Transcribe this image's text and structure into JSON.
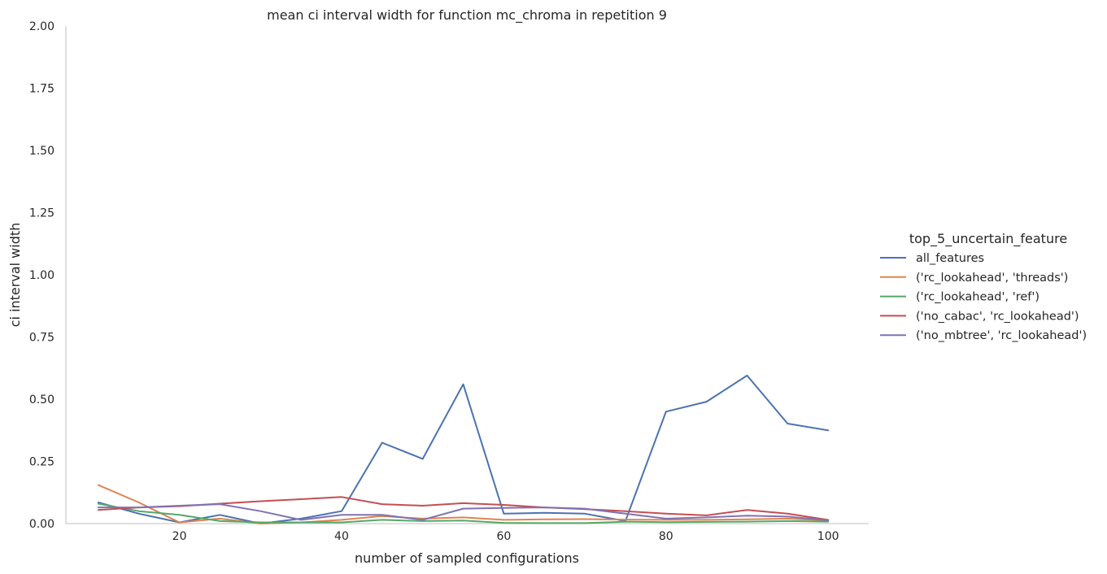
{
  "chart_data": {
    "type": "line",
    "title": "mean ci interval width for function mc_chroma in repetition 9",
    "xlabel": "number of sampled configurations",
    "ylabel": "ci interval width",
    "xlim": [
      6,
      105
    ],
    "ylim": [
      0,
      2.0
    ],
    "x_ticks": [
      20,
      40,
      60,
      80,
      100
    ],
    "y_ticks": [
      0.0,
      0.25,
      0.5,
      0.75,
      1.0,
      1.25,
      1.5,
      1.75,
      2.0
    ],
    "x_tick_labels": [
      "20",
      "40",
      "60",
      "80",
      "100"
    ],
    "y_tick_labels": [
      "0.00",
      "0.25",
      "0.50",
      "0.75",
      "1.00",
      "1.25",
      "1.50",
      "1.75",
      "2.00"
    ],
    "grid": false,
    "legend_placement": "right",
    "legend_title": "top_5_uncertain_feature",
    "x": [
      10,
      15,
      20,
      25,
      30,
      35,
      40,
      45,
      50,
      55,
      60,
      65,
      70,
      75,
      80,
      85,
      90,
      95,
      100
    ],
    "series": [
      {
        "name": "all_features",
        "color": "#4c72b0",
        "values": [
          0.085,
          0.04,
          0.005,
          0.035,
          0.0,
          0.02,
          0.05,
          0.325,
          0.26,
          0.56,
          0.04,
          0.043,
          0.04,
          0.01,
          0.45,
          0.49,
          0.595,
          0.402,
          0.375
        ]
      },
      {
        "name": "('rc_lookahead', 'threads')",
        "color": "#dd8452",
        "values": [
          0.155,
          0.085,
          0.005,
          0.02,
          0.0,
          0.005,
          0.015,
          0.03,
          0.02,
          0.025,
          0.015,
          0.017,
          0.018,
          0.016,
          0.015,
          0.015,
          0.017,
          0.02,
          0.012
        ]
      },
      {
        "name": "('rc_lookahead', 'ref')",
        "color": "#55a868",
        "values": [
          0.08,
          0.05,
          0.035,
          0.01,
          0.005,
          0.005,
          0.005,
          0.015,
          0.01,
          0.012,
          0.003,
          0.002,
          0.002,
          0.008,
          0.006,
          0.007,
          0.008,
          0.01,
          0.008
        ]
      },
      {
        "name": "('no_cabac', 'rc_lookahead')",
        "color": "#c44e52",
        "values": [
          0.055,
          0.065,
          0.07,
          0.08,
          0.09,
          0.098,
          0.107,
          0.078,
          0.072,
          0.082,
          0.075,
          0.065,
          0.058,
          0.05,
          0.04,
          0.033,
          0.055,
          0.04,
          0.015
        ]
      },
      {
        "name": "('no_mbtree', 'rc_lookahead')",
        "color": "#8172b3",
        "values": [
          0.065,
          0.065,
          0.072,
          0.078,
          0.05,
          0.015,
          0.035,
          0.035,
          0.015,
          0.06,
          0.063,
          0.065,
          0.06,
          0.04,
          0.02,
          0.025,
          0.032,
          0.028,
          0.013
        ]
      }
    ]
  }
}
